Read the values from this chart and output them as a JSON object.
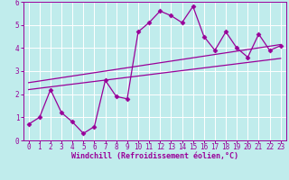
{
  "xlabel": "Windchill (Refroidissement éolien,°C)",
  "xlim": [
    -0.5,
    23.5
  ],
  "ylim": [
    0,
    6
  ],
  "xticks": [
    0,
    1,
    2,
    3,
    4,
    5,
    6,
    7,
    8,
    9,
    10,
    11,
    12,
    13,
    14,
    15,
    16,
    17,
    18,
    19,
    20,
    21,
    22,
    23
  ],
  "yticks": [
    0,
    1,
    2,
    3,
    4,
    5,
    6
  ],
  "bg_color": "#c0ecec",
  "line_color": "#990099",
  "data_x": [
    0,
    1,
    2,
    3,
    4,
    5,
    6,
    7,
    8,
    9,
    10,
    11,
    12,
    13,
    14,
    15,
    16,
    17,
    18,
    19,
    20,
    21,
    22,
    23
  ],
  "data_y": [
    0.7,
    1.0,
    2.2,
    1.2,
    0.8,
    0.3,
    0.6,
    2.6,
    1.9,
    1.8,
    4.7,
    5.1,
    5.6,
    5.4,
    5.1,
    5.8,
    4.5,
    3.9,
    4.7,
    4.0,
    3.6,
    4.6,
    3.9,
    4.1
  ],
  "trend1_x": [
    0,
    23
  ],
  "trend1_y": [
    2.2,
    3.55
  ],
  "trend2_x": [
    0,
    23
  ],
  "trend2_y": [
    2.5,
    4.15
  ],
  "marker": "D",
  "markersize": 2.5,
  "linewidth": 0.9,
  "tick_fontsize": 5.5,
  "xlabel_fontsize": 6.0
}
